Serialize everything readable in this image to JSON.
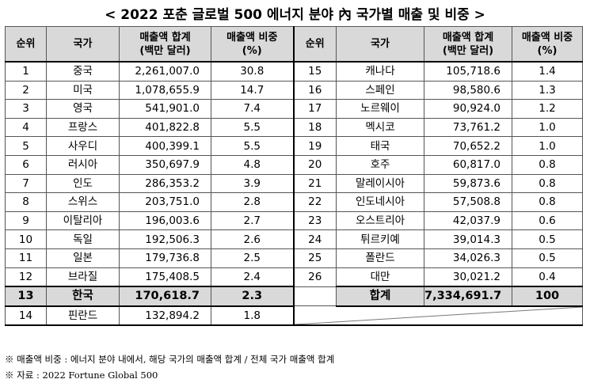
{
  "title": "< 2022 포춘 글로벌 500 에너지 분야 內 국가별 매출 및 비중 >",
  "headers": {
    "rank": "순위",
    "country": "국가",
    "sales_line1": "매출액 합계",
    "sales_line2": "(백만 달러)",
    "share_line1": "매출액 비중",
    "share_line2": "(%)"
  },
  "left_rows": [
    {
      "rank": "1",
      "country": "중국",
      "sales": "2,261,007.0",
      "share": "30.8"
    },
    {
      "rank": "2",
      "country": "미국",
      "sales": "1,078,655.9",
      "share": "14.7"
    },
    {
      "rank": "3",
      "country": "영국",
      "sales": "541,901.0",
      "share": "7.4"
    },
    {
      "rank": "4",
      "country": "프랑스",
      "sales": "401,822.8",
      "share": "5.5"
    },
    {
      "rank": "5",
      "country": "사우디",
      "sales": "400,399.1",
      "share": "5.5"
    },
    {
      "rank": "6",
      "country": "러시아",
      "sales": "350,697.9",
      "share": "4.8"
    },
    {
      "rank": "7",
      "country": "인도",
      "sales": "286,353.2",
      "share": "3.9"
    },
    {
      "rank": "8",
      "country": "스위스",
      "sales": "203,751.0",
      "share": "2.8"
    },
    {
      "rank": "9",
      "country": "이탈리아",
      "sales": "196,003.6",
      "share": "2.7"
    },
    {
      "rank": "10",
      "country": "독일",
      "sales": "192,506.3",
      "share": "2.6"
    },
    {
      "rank": "11",
      "country": "일본",
      "sales": "179,736.8",
      "share": "2.5"
    },
    {
      "rank": "12",
      "country": "브라질",
      "sales": "175,408.5",
      "share": "2.4"
    },
    {
      "rank": "13",
      "country": "한국",
      "sales": "170,618.7",
      "share": "2.3"
    },
    {
      "rank": "14",
      "country": "핀란드",
      "sales": "132,894.2",
      "share": "1.8"
    }
  ],
  "right_rows": [
    {
      "rank": "15",
      "country": "캐나다",
      "sales": "105,718.6",
      "share": "1.4"
    },
    {
      "rank": "16",
      "country": "스페인",
      "sales": "98,580.6",
      "share": "1.3"
    },
    {
      "rank": "17",
      "country": "노르웨이",
      "sales": "90,924.0",
      "share": "1.2"
    },
    {
      "rank": "18",
      "country": "멕시코",
      "sales": "73,761.2",
      "share": "1.0"
    },
    {
      "rank": "19",
      "country": "태국",
      "sales": "70,652.2",
      "share": "1.0"
    },
    {
      "rank": "20",
      "country": "호주",
      "sales": "60,817.0",
      "share": "0.8"
    },
    {
      "rank": "21",
      "country": "말레이시아",
      "sales": "59,873.6",
      "share": "0.8"
    },
    {
      "rank": "22",
      "country": "인도네시아",
      "sales": "57,508.8",
      "share": "0.8"
    },
    {
      "rank": "23",
      "country": "오스트리아",
      "sales": "42,037.9",
      "share": "0.6"
    },
    {
      "rank": "24",
      "country": "튀르키예",
      "sales": "39,014.3",
      "share": "0.5"
    },
    {
      "rank": "25",
      "country": "폴란드",
      "sales": "34,026.3",
      "share": "0.5"
    },
    {
      "rank": "26",
      "country": "대만",
      "sales": "30,021.2",
      "share": "0.4"
    }
  ],
  "total": {
    "label": "합계",
    "sales": "7,334,691.7",
    "share": "100"
  },
  "notes": [
    "※ 매출액 비중 : 에너지 분야 내에서, 해당 국가의 매출액 합계 / 전체 국가 매출액 합계",
    "※ 자료 : 2022 Fortune Global 500"
  ]
}
